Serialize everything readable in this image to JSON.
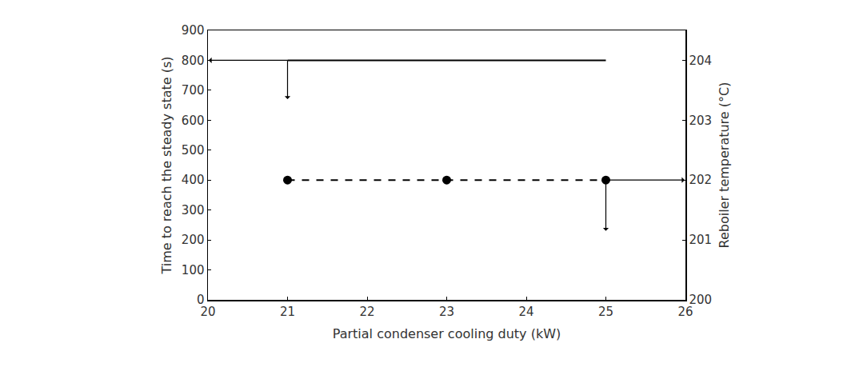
{
  "chart_data": {
    "type": "line",
    "x_label": "Partial condenser cooling duty (kW)",
    "y_label": "Time to reach the steady state (s)",
    "y2_label": "Reboiler temperature (°C)",
    "x": [
      21,
      23,
      25
    ],
    "series": [
      {
        "values": [
          800,
          800,
          800
        ],
        "color": "#000000",
        "line_style": "solid"
      },
      {
        "values": [
          202,
          202,
          202
        ],
        "color": "#000000",
        "line_style": "dashed",
        "marker": "circle",
        "axis": "y2"
      }
    ],
    "xlim": [
      20,
      26
    ],
    "xticks": [
      20,
      21,
      22,
      23,
      24,
      25,
      26
    ],
    "ylim": [
      0,
      900
    ],
    "yticks": [
      0,
      100,
      200,
      300,
      400,
      500,
      600,
      700,
      800,
      900
    ],
    "y2lim": [
      200,
      204.5
    ],
    "y2ticks": [
      200,
      201,
      202,
      203,
      204
    ],
    "grid": false
  }
}
